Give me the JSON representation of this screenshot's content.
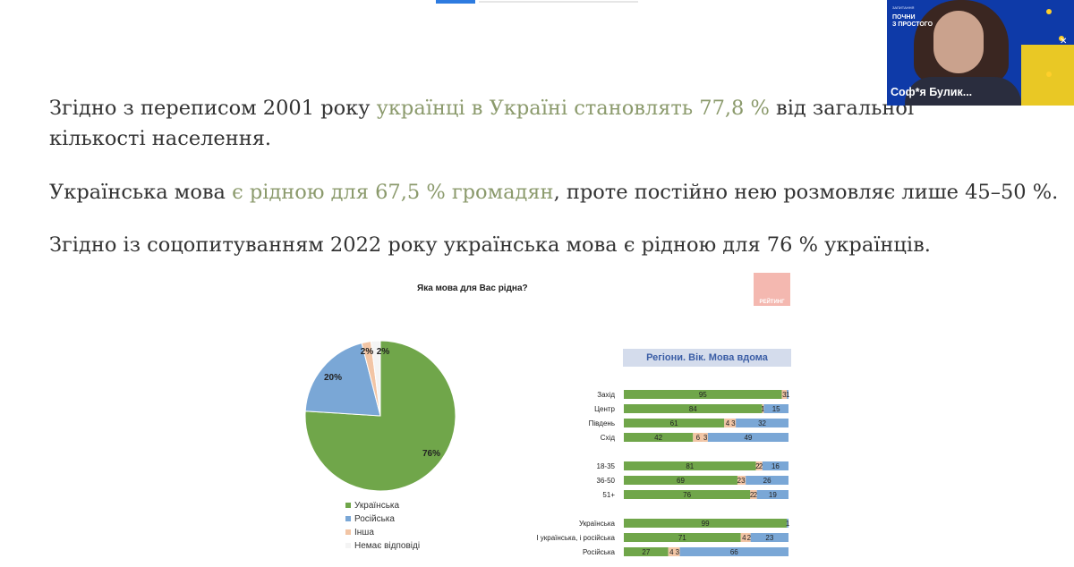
{
  "slide": {
    "p1": {
      "before": "Згідно з переписом 2001 року ",
      "highlight": "українці в Україні становлять 77,8 %",
      "after": " від загальної",
      "line2": "кількості населення."
    },
    "p2": {
      "before": "Українська мова ",
      "highlight": "є рідною для 67,5 % громадян",
      "after": ", проте постійно нею розмовляє лише 45–50 %."
    },
    "p3": "Згідно із соцопитуванням 2022 року українська мова є рідною для 76 % українців."
  },
  "logo_text": "РЕЙТИНГ",
  "video": {
    "brand_top": "ЗАПИТАННЯ",
    "brand_line1": "ПОЧНИ",
    "brand_line2": "З ПРОСТОГО",
    "participant_name": "Соф*я Булик..."
  },
  "colors": {
    "ukrainian": "#70a64a",
    "russian": "#7aa7d6",
    "other": "#f2c5a5",
    "no_answer": "#f4f4f4",
    "mixed": "#f2c5a5",
    "highlight_text": "#8b9a6c"
  },
  "chart_data": [
    {
      "type": "pie",
      "title": "Яка мова для Вас рідна?",
      "slices": [
        {
          "name": "Українська",
          "value": 76,
          "label": "76%"
        },
        {
          "name": "Російська",
          "value": 20,
          "label": "20%"
        },
        {
          "name": "Інша",
          "value": 2,
          "label": "2%"
        },
        {
          "name": "Немає відповіді",
          "value": 2,
          "label": "2%"
        }
      ],
      "legend": [
        "Українська",
        "Російська",
        "Інша",
        "Немає відповіді"
      ],
      "legend_position": "bottom"
    },
    {
      "type": "bar",
      "orientation": "horizontal",
      "stacked": true,
      "title": "Регіони. Вік. Мова вдома",
      "groups": [
        {
          "rows": [
            {
              "category": "Захід",
              "values": [
                95,
                3,
                1
              ],
              "labels": [
                "95",
                "3",
                "1"
              ]
            },
            {
              "category": "Центр",
              "values": [
                84,
                1,
                15
              ],
              "labels": [
                "84",
                "1",
                "15"
              ]
            },
            {
              "category": "Південь",
              "values": [
                61,
                4,
                3,
                32
              ],
              "labels": [
                "61",
                "4",
                "3",
                "32"
              ]
            },
            {
              "category": "Схід",
              "values": [
                42,
                6,
                3,
                49
              ],
              "labels": [
                "42",
                "6",
                "3",
                "49"
              ]
            }
          ]
        },
        {
          "rows": [
            {
              "category": "18-35",
              "values": [
                81,
                2,
                2,
                16
              ],
              "labels": [
                "81",
                "2",
                "2",
                "16"
              ]
            },
            {
              "category": "36-50",
              "values": [
                69,
                2,
                3,
                26
              ],
              "labels": [
                "69",
                "2",
                "3",
                "26"
              ]
            },
            {
              "category": "51+",
              "values": [
                76,
                2,
                2,
                19
              ],
              "labels": [
                "76",
                "2",
                "2",
                "19"
              ]
            }
          ]
        },
        {
          "rows": [
            {
              "category": "Українська",
              "values": [
                99,
                1
              ],
              "labels": [
                "99",
                "1"
              ]
            },
            {
              "category": "І українська, і російська",
              "values": [
                71,
                4,
                2,
                23
              ],
              "labels": [
                "71",
                "4",
                "2",
                "23"
              ]
            },
            {
              "category": "Російська",
              "values": [
                27,
                4,
                3,
                66
              ],
              "labels": [
                "27",
                "4",
                "3",
                "66"
              ]
            }
          ]
        }
      ]
    }
  ]
}
